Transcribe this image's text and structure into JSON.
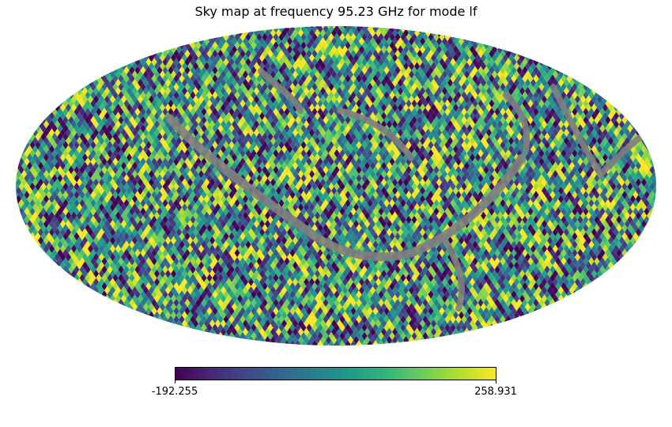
{
  "chart_data": {
    "type": "heatmap",
    "projection": "mollweide",
    "title": "Sky map at frequency 95.23 GHz for mode lf",
    "colormap": "viridis",
    "masked_color": "#808080",
    "colorbar": {
      "min": -192.255,
      "max": 258.931,
      "min_label": "-192.255",
      "max_label": "258.931",
      "orientation": "horizontal",
      "placement": "bottom"
    }
  }
}
